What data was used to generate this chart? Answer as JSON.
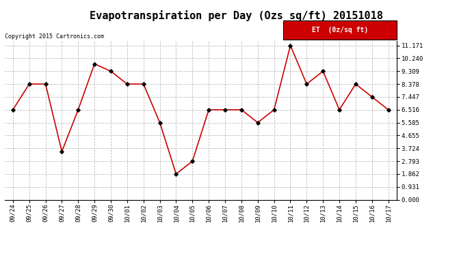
{
  "title": "Evapotranspiration per Day (Ozs sq/ft) 20151018",
  "copyright_text": "Copyright 2015 Cartronics.com",
  "legend_label": "ET  (0z/sq ft)",
  "x_labels": [
    "09/24",
    "09/25",
    "09/26",
    "09/27",
    "09/28",
    "09/29",
    "09/30",
    "10/01",
    "10/02",
    "10/03",
    "10/04",
    "10/05",
    "10/06",
    "10/07",
    "10/08",
    "10/09",
    "10/10",
    "10/11",
    "10/12",
    "10/13",
    "10/14",
    "10/15",
    "10/16",
    "10/17"
  ],
  "y_values": [
    6.516,
    8.378,
    8.378,
    3.49,
    6.516,
    9.84,
    9.309,
    8.378,
    8.378,
    5.585,
    1.862,
    2.793,
    6.516,
    6.516,
    6.516,
    5.585,
    6.516,
    11.171,
    8.378,
    9.309,
    6.516,
    8.378,
    7.447,
    6.516
  ],
  "y_ticks": [
    0.0,
    0.931,
    1.862,
    2.793,
    3.724,
    4.655,
    5.585,
    6.516,
    7.447,
    8.378,
    9.309,
    10.24,
    11.171
  ],
  "line_color": "#cc0000",
  "marker_color": "#000000",
  "background_color": "#ffffff",
  "grid_color": "#bbbbbb",
  "title_fontsize": 11,
  "copyright_fontsize": 6,
  "tick_fontsize": 6.5,
  "legend_bg_color": "#cc0000",
  "legend_text_color": "#ffffff",
  "legend_fontsize": 7,
  "ylim_max": 11.5,
  "border_color": "#000000"
}
